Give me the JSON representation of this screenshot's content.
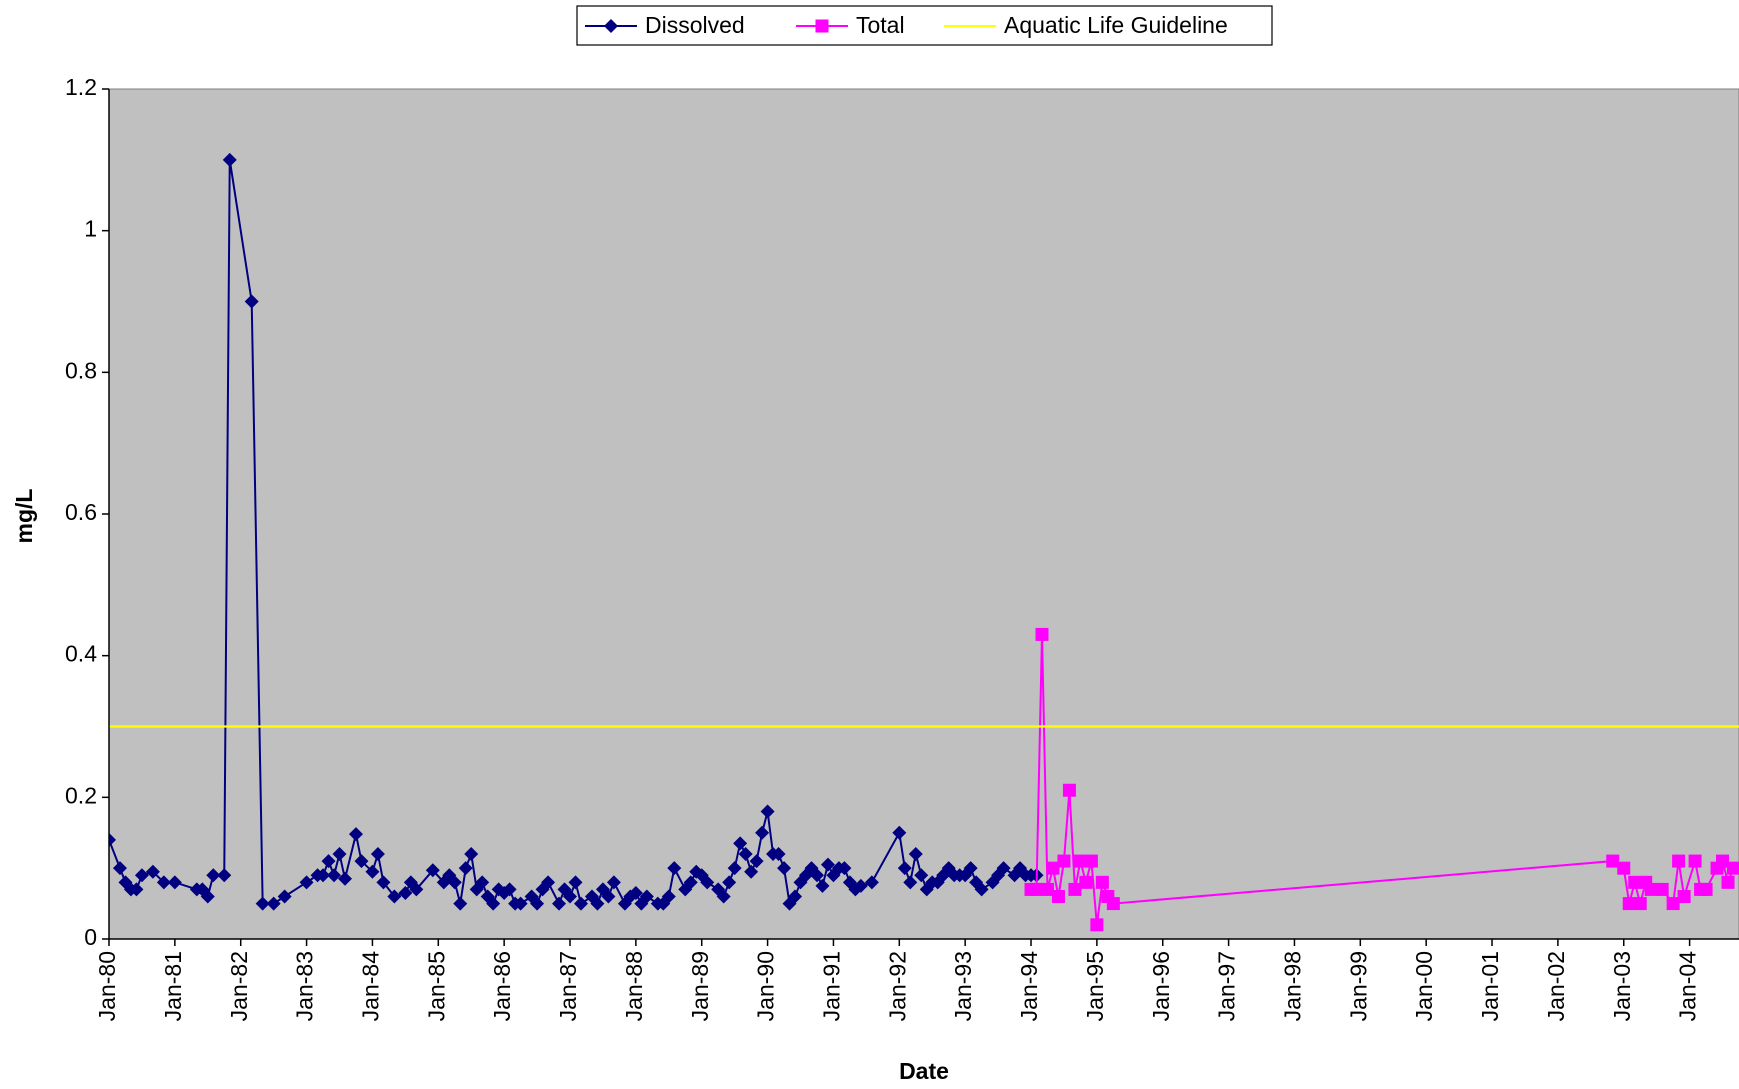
{
  "chart_data": {
    "type": "line",
    "x_label": "Date",
    "y_label": "mg/L",
    "xlim": [
      "1980-01",
      "2004-10"
    ],
    "xticks": [
      {
        "value": "1980-01",
        "label": "Jan-80"
      },
      {
        "value": "1981-01",
        "label": "Jan-81"
      },
      {
        "value": "1982-01",
        "label": "Jan-82"
      },
      {
        "value": "1983-01",
        "label": "Jan-83"
      },
      {
        "value": "1984-01",
        "label": "Jan-84"
      },
      {
        "value": "1985-01",
        "label": "Jan-85"
      },
      {
        "value": "1986-01",
        "label": "Jan-86"
      },
      {
        "value": "1987-01",
        "label": "Jan-87"
      },
      {
        "value": "1988-01",
        "label": "Jan-88"
      },
      {
        "value": "1989-01",
        "label": "Jan-89"
      },
      {
        "value": "1990-01",
        "label": "Jan-90"
      },
      {
        "value": "1991-01",
        "label": "Jan-91"
      },
      {
        "value": "1992-01",
        "label": "Jan-92"
      },
      {
        "value": "1993-01",
        "label": "Jan-93"
      },
      {
        "value": "1994-01",
        "label": "Jan-94"
      },
      {
        "value": "1995-01",
        "label": "Jan-95"
      },
      {
        "value": "1996-01",
        "label": "Jan-96"
      },
      {
        "value": "1997-01",
        "label": "Jan-97"
      },
      {
        "value": "1998-01",
        "label": "Jan-98"
      },
      {
        "value": "1999-01",
        "label": "Jan-99"
      },
      {
        "value": "2000-01",
        "label": "Jan-00"
      },
      {
        "value": "2001-01",
        "label": "Jan-01"
      },
      {
        "value": "2002-01",
        "label": "Jan-02"
      },
      {
        "value": "2003-01",
        "label": "Jan-03"
      },
      {
        "value": "2004-01",
        "label": "Jan-04"
      }
    ],
    "ylim": [
      0,
      1.2
    ],
    "yticks": [
      0,
      0.2,
      0.4,
      0.6,
      0.8,
      1,
      1.2
    ],
    "plot_background": "#c0c0c0",
    "legend": "top",
    "series": [
      {
        "name": "Dissolved",
        "color": "#000080",
        "marker": "diamond",
        "x": [
          "1980-01",
          "1980-03",
          "1980-04",
          "1980-05",
          "1980-06",
          "1980-07",
          "1980-09",
          "1980-11",
          "1981-01",
          "1981-05",
          "1981-06",
          "1981-07",
          "1981-08",
          "1981-10",
          "1981-11",
          "1982-03",
          "1982-05",
          "1982-07",
          "1982-09",
          "1983-01",
          "1983-03",
          "1983-04",
          "1983-05",
          "1983-06",
          "1983-07",
          "1983-08",
          "1983-10",
          "1983-11",
          "1984-01",
          "1984-02",
          "1984-03",
          "1984-05",
          "1984-07",
          "1984-08",
          "1984-09",
          "1984-12",
          "1985-02",
          "1985-03",
          "1985-04",
          "1985-05",
          "1985-06",
          "1985-07",
          "1985-08",
          "1985-09",
          "1985-10",
          "1985-11",
          "1985-12",
          "1986-01",
          "1986-02",
          "1986-03",
          "1986-04",
          "1986-06",
          "1986-07",
          "1986-08",
          "1986-09",
          "1986-11",
          "1986-12",
          "1987-01",
          "1987-02",
          "1987-03",
          "1987-05",
          "1987-06",
          "1987-07",
          "1987-08",
          "1987-09",
          "1987-11",
          "1987-12",
          "1988-01",
          "1988-02",
          "1988-03",
          "1988-05",
          "1988-06",
          "1988-07",
          "1988-08",
          "1988-10",
          "1988-11",
          "1988-12",
          "1989-01",
          "1989-02",
          "1989-04",
          "1989-05",
          "1989-06",
          "1989-07",
          "1989-08",
          "1989-09",
          "1989-10",
          "1989-11",
          "1989-12",
          "1990-01",
          "1990-02",
          "1990-03",
          "1990-04",
          "1990-05",
          "1990-06",
          "1990-07",
          "1990-08",
          "1990-09",
          "1990-10",
          "1990-11",
          "1990-12",
          "1991-01",
          "1991-02",
          "1991-03",
          "1991-04",
          "1991-05",
          "1991-06",
          "1991-08",
          "1992-01",
          "1992-02",
          "1992-03",
          "1992-04",
          "1992-05",
          "1992-06",
          "1992-07",
          "1992-08",
          "1992-09",
          "1992-10",
          "1992-11",
          "1992-12",
          "1993-01",
          "1993-02",
          "1993-03",
          "1993-04",
          "1993-06",
          "1993-07",
          "1993-08",
          "1993-10",
          "1993-11",
          "1993-12",
          "1994-01",
          "1994-02"
        ],
        "values": [
          0.14,
          0.1,
          0.08,
          0.07,
          0.07,
          0.09,
          0.095,
          0.08,
          0.08,
          0.07,
          0.07,
          0.06,
          0.09,
          0.09,
          1.1,
          0.9,
          0.05,
          0.05,
          0.06,
          0.08,
          0.09,
          0.09,
          0.11,
          0.09,
          0.12,
          0.085,
          0.148,
          0.11,
          0.095,
          0.12,
          0.08,
          0.06,
          0.065,
          0.08,
          0.07,
          0.097,
          0.08,
          0.09,
          0.08,
          0.05,
          0.1,
          0.12,
          0.07,
          0.08,
          0.06,
          0.05,
          0.07,
          0.065,
          0.07,
          0.05,
          0.05,
          0.06,
          0.05,
          0.07,
          0.08,
          0.05,
          0.07,
          0.06,
          0.08,
          0.05,
          0.06,
          0.05,
          0.07,
          0.06,
          0.08,
          0.05,
          0.06,
          0.065,
          0.05,
          0.06,
          0.05,
          0.05,
          0.06,
          0.1,
          0.07,
          0.08,
          0.095,
          0.09,
          0.08,
          0.07,
          0.06,
          0.08,
          0.1,
          0.135,
          0.12,
          0.095,
          0.11,
          0.15,
          0.18,
          0.12,
          0.12,
          0.1,
          0.05,
          0.06,
          0.08,
          0.09,
          0.1,
          0.09,
          0.075,
          0.105,
          0.09,
          0.1,
          0.1,
          0.08,
          0.07,
          0.075,
          0.08,
          0.15,
          0.1,
          0.08,
          0.12,
          0.09,
          0.07,
          0.08,
          0.08,
          0.09,
          0.1,
          0.09,
          0.09,
          0.09,
          0.1,
          0.08,
          0.07,
          0.08,
          0.09,
          0.1,
          0.09,
          0.1,
          0.09,
          0.09,
          0.09
        ]
      },
      {
        "name": "Total",
        "color": "#ff00ff",
        "marker": "square",
        "x": [
          "1994-01",
          "1994-02",
          "1994-03",
          "1994-04",
          "1994-05",
          "1994-06",
          "1994-07",
          "1994-08",
          "1994-09",
          "1994-10",
          "1994-11",
          "1994-12",
          "1995-01",
          "1995-02",
          "1995-03",
          "1995-04",
          "2002-11",
          "2003-01",
          "2003-02",
          "2003-03",
          "2003-04",
          "2003-05",
          "2003-06",
          "2003-08",
          "2003-10",
          "2003-11",
          "2003-12",
          "2004-02",
          "2004-03",
          "2004-04",
          "2004-06",
          "2004-07",
          "2004-08",
          "2004-09"
        ],
        "values": [
          0.07,
          0.07,
          0.43,
          0.07,
          0.1,
          0.06,
          0.11,
          0.21,
          0.07,
          0.11,
          0.08,
          0.11,
          0.02,
          0.08,
          0.06,
          0.05,
          0.11,
          0.1,
          0.05,
          0.08,
          0.05,
          0.08,
          0.07,
          0.07,
          0.05,
          0.11,
          0.06,
          0.11,
          0.07,
          0.07,
          0.1,
          0.11,
          0.08,
          0.1
        ]
      },
      {
        "name": "Aquatic Life Guideline",
        "color": "#ffff00",
        "marker": null,
        "x": [
          "1980-01",
          "2004-10"
        ],
        "values": [
          0.3,
          0.3
        ]
      }
    ]
  }
}
